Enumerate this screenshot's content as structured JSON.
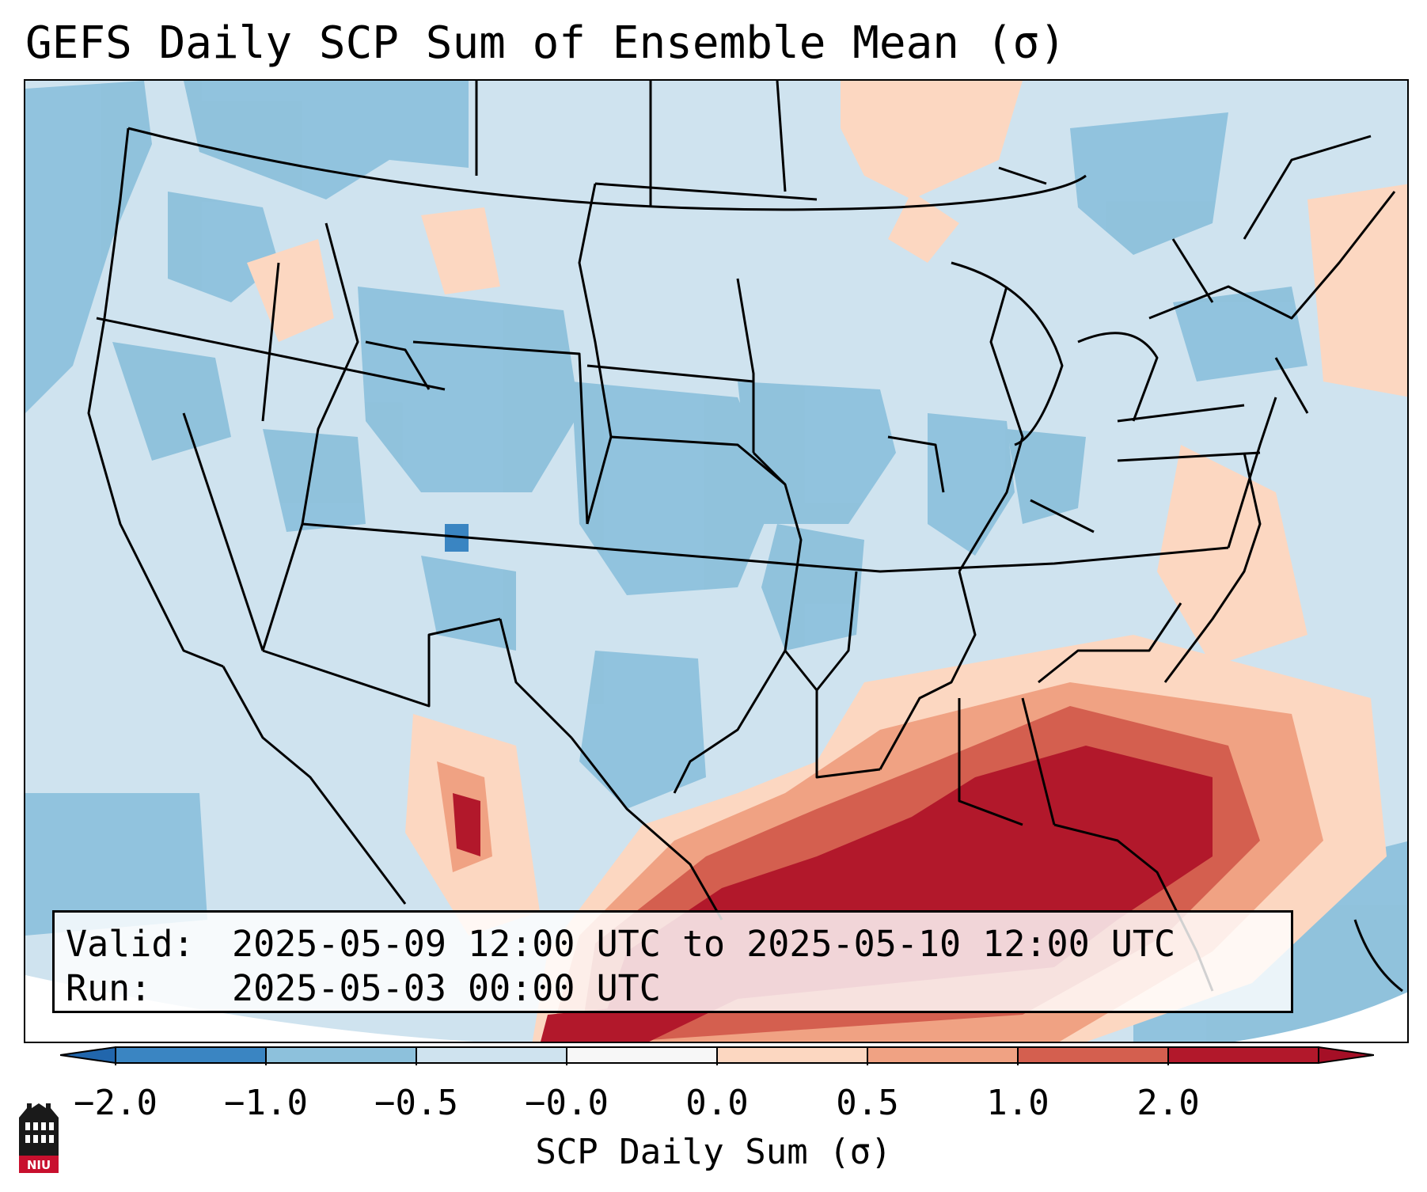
{
  "title": "GEFS Daily SCP Sum of Ensemble Mean (σ)",
  "info": {
    "valid_label": "Valid:",
    "valid_value": "2025-05-09 12:00 UTC to 2025-05-10 12:00 UTC",
    "run_label": "Run:",
    "run_value": "2025-05-03 00:00 UTC"
  },
  "colorbar": {
    "label": "SCP Daily Sum (σ)",
    "ticks": [
      "−2.0",
      "−1.0",
      "−0.5",
      "−0.0",
      "0.0",
      "0.5",
      "1.0",
      "2.0"
    ],
    "bins": [
      {
        "color": "#3a85c2"
      },
      {
        "color": "#8dc1dc"
      },
      {
        "color": "#cfe3ef"
      },
      {
        "color": "#f7f7f7"
      },
      {
        "color": "#fcd7c1"
      },
      {
        "color": "#f0a283"
      },
      {
        "color": "#d45f4f"
      },
      {
        "color": "#b2182b"
      }
    ],
    "extend_low_color": "#2166ac",
    "extend_high_color": "#a50f26"
  },
  "map": {
    "background_color": "#cfe3ef",
    "border_color": "#000000"
  },
  "logo": {
    "text": "NIU"
  }
}
